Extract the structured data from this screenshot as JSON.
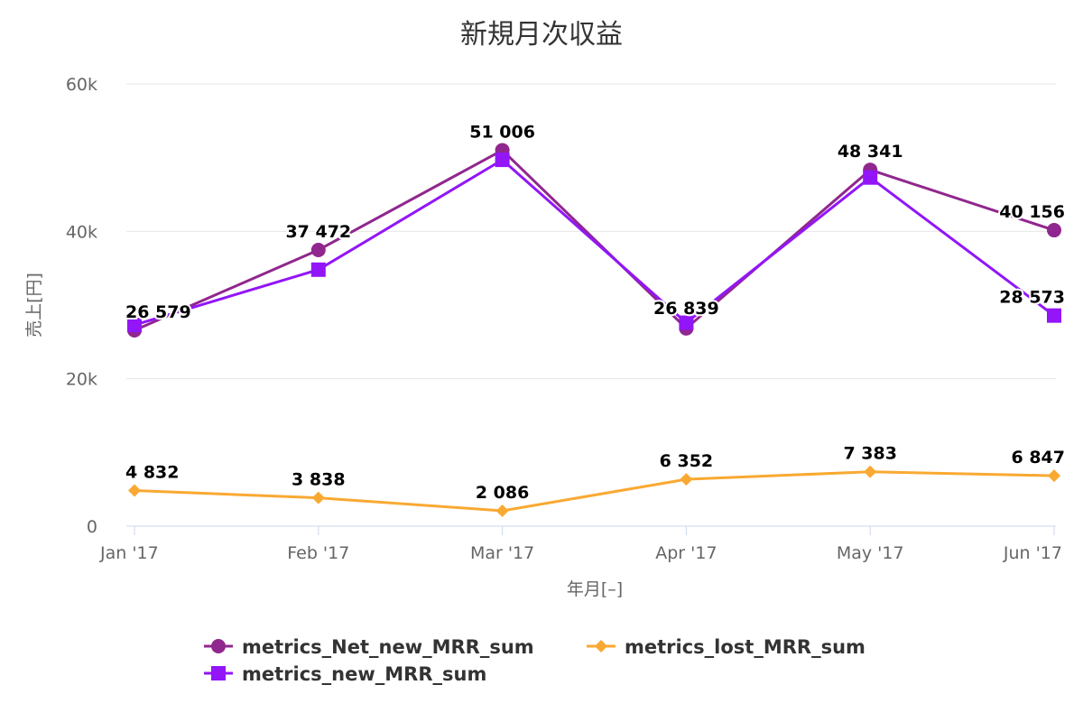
{
  "chart_data": {
    "type": "line",
    "title": "新規月次収益",
    "xlabel": "年月[–]",
    "ylabel": "売上[円]",
    "categories": [
      "Jan '17",
      "Feb '17",
      "Mar '17",
      "Apr '17",
      "May '17",
      "Jun '17"
    ],
    "ylim": [
      0,
      60000
    ],
    "yticks": [
      {
        "value": 0,
        "label": "0"
      },
      {
        "value": 20000,
        "label": "20k"
      },
      {
        "value": 40000,
        "label": "40k"
      },
      {
        "value": 60000,
        "label": "60k"
      }
    ],
    "grid": true,
    "legend_position": "bottom",
    "series": [
      {
        "name": "metrics_Net_new_MRR_sum",
        "key": "net",
        "color": "#90278e",
        "marker": "circle",
        "values": [
          26579,
          37472,
          51006,
          26839,
          48341,
          40156
        ],
        "labels": [
          "26 579",
          "37 472",
          "51 006",
          "26 839",
          "48 341",
          "40 156"
        ]
      },
      {
        "name": "metrics_new_MRR_sum",
        "key": "new",
        "color": "#9216f7",
        "marker": "square",
        "values": [
          27300,
          34800,
          49700,
          27600,
          47300,
          28573
        ],
        "labels": [
          "",
          "",
          "",
          "",
          "",
          "28 573"
        ]
      },
      {
        "name": "metrics_lost_MRR_sum",
        "key": "lost",
        "color": "#f9a932",
        "marker": "diamond",
        "values": [
          4832,
          3838,
          2086,
          6352,
          7383,
          6847
        ],
        "labels": [
          "4 832",
          "3 838",
          "2 086",
          "6 352",
          "7 383",
          "6 847"
        ]
      }
    ]
  }
}
